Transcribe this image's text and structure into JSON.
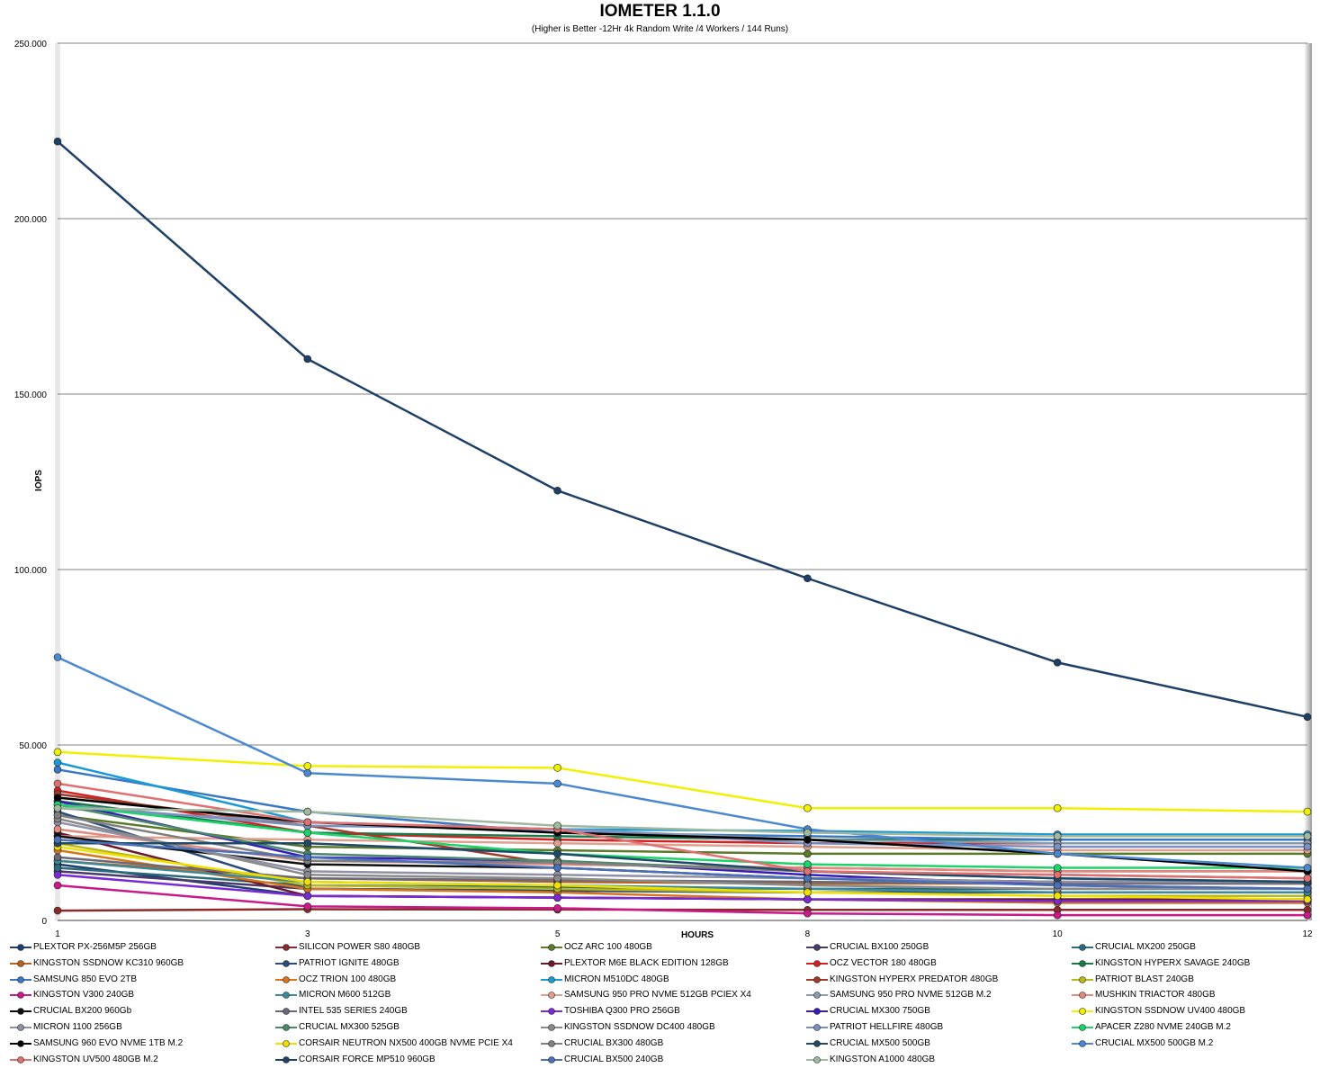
{
  "chart_data": {
    "type": "line",
    "title": "IOMETER 1.1.0",
    "subtitle": "(Higher is Better -12Hr 4k Random Write /4 Workers / 144 Runs)",
    "xlabel": "HOURS",
    "ylabel": "IOPS",
    "x": [
      "1",
      "3",
      "5",
      "8",
      "10",
      "12"
    ],
    "ylim": [
      0,
      250000
    ],
    "yticks": [
      "0",
      "50.000",
      "100.000",
      "150.000",
      "200.000",
      "250.000"
    ],
    "grid": "horizontal",
    "legend_position": "bottom",
    "series": [
      {
        "name": "PLEXTOR PX-256M5P 256GB",
        "color": "#1f3f6e",
        "values": [
          16000,
          7000,
          6500,
          6000,
          6000,
          6000
        ]
      },
      {
        "name": "SILICON POWER S80 480GB",
        "color": "#8b2a2a",
        "values": [
          2800,
          3200,
          3100,
          3000,
          3000,
          3000
        ]
      },
      {
        "name": "OCZ ARC 100 480GB",
        "color": "#5a7a2a",
        "values": [
          30000,
          21000,
          20000,
          19000,
          19000,
          19000
        ]
      },
      {
        "name": "CRUCIAL BX100 250GB",
        "color": "#4a3a6a",
        "values": [
          14000,
          9000,
          8500,
          8000,
          8000,
          8000
        ]
      },
      {
        "name": "CRUCIAL MX200 250GB",
        "color": "#2a6a7a",
        "values": [
          15000,
          10000,
          9500,
          9000,
          9000,
          9000
        ]
      },
      {
        "name": "KINGSTON SSDNOW KC310 960GB",
        "color": "#b8621e",
        "values": [
          17000,
          12000,
          11000,
          10500,
          10500,
          10500
        ]
      },
      {
        "name": "PATRIOT IGNITE 480GB",
        "color": "#2a4a7a",
        "values": [
          31000,
          9000,
          8500,
          8000,
          8000,
          8000
        ]
      },
      {
        "name": "PLEXTOR M6E BLACK EDITION 128GB",
        "color": "#6a1a2a",
        "values": [
          25000,
          7000,
          6500,
          6000,
          6000,
          6000
        ]
      },
      {
        "name": "OCZ VECTOR 180 480GB",
        "color": "#d42020",
        "values": [
          37000,
          25000,
          23000,
          22000,
          22000,
          22000
        ]
      },
      {
        "name": "KINGSTON HYPERX SAVAGE 240GB",
        "color": "#1a7a4a",
        "values": [
          34000,
          25000,
          24000,
          23000,
          23000,
          23000
        ]
      },
      {
        "name": "SAMSUNG 850 EVO 2TB",
        "color": "#3a78c4",
        "values": [
          43000,
          31000,
          25000,
          24000,
          23000,
          23000
        ]
      },
      {
        "name": "OCZ TRION 100 480GB",
        "color": "#d8741a",
        "values": [
          20000,
          9000,
          8000,
          6000,
          5000,
          5000
        ]
      },
      {
        "name": "MICRON M510DC 480GB",
        "color": "#1a9ad4",
        "values": [
          45000,
          28000,
          26000,
          25500,
          24500,
          24500
        ]
      },
      {
        "name": "KINGSTON HYPERX PREDATOR 480GB",
        "color": "#a03a2a",
        "values": [
          36000,
          27000,
          16000,
          15000,
          14000,
          14000
        ]
      },
      {
        "name": "PATRIOT BLAST 240GB",
        "color": "#b8b81a",
        "values": [
          22000,
          10000,
          9000,
          8000,
          7000,
          7000
        ]
      },
      {
        "name": "KINGSTON V300 240GB",
        "color": "#c81a8a",
        "values": [
          10000,
          4000,
          3500,
          2000,
          1500,
          1500
        ]
      },
      {
        "name": "MICRON M600 512GB",
        "color": "#3a8a9a",
        "values": [
          17000,
          11000,
          10000,
          9000,
          8000,
          8000
        ]
      },
      {
        "name": "SAMSUNG 950 PRO NVME 512GB PCIEX X4",
        "color": "#e0a090",
        "values": [
          24000,
          23000,
          22000,
          21000,
          20000,
          20000
        ]
      },
      {
        "name": "SAMSUNG 950 PRO NVME 512GB M.2",
        "color": "#8a9ab0",
        "values": [
          32000,
          28000,
          26000,
          23000,
          22000,
          22000
        ]
      },
      {
        "name": "MUSHKIN TRIACTOR 480GB",
        "color": "#e08a80",
        "values": [
          26000,
          17000,
          16000,
          15000,
          14000,
          14000
        ]
      },
      {
        "name": "CRUCIAL BX200 960Gb",
        "color": "#101010",
        "values": [
          24000,
          16000,
          15000,
          12000,
          11000,
          11000
        ]
      },
      {
        "name": "INTEL 535 SERIES 240GB",
        "color": "#6a6a7a",
        "values": [
          18000,
          12000,
          11500,
          11000,
          10500,
          10500
        ]
      },
      {
        "name": "TOSHIBA Q300 PRO 256GB",
        "color": "#7a2ad4",
        "values": [
          13000,
          7000,
          6500,
          6000,
          5500,
          5500
        ]
      },
      {
        "name": "CRUCIAL MX300 750GB",
        "color": "#3a1ab8",
        "values": [
          34000,
          18000,
          17000,
          13000,
          10000,
          9000
        ]
      },
      {
        "name": "KINGSTON SSDNOW UV400 480GB",
        "color": "#f0f000",
        "values": [
          48000,
          44000,
          43500,
          32000,
          32000,
          31000
        ]
      },
      {
        "name": "MICRON 1100 256GB",
        "color": "#9090a8",
        "values": [
          28000,
          14000,
          13000,
          12000,
          11000,
          11000
        ]
      },
      {
        "name": "CRUCIAL MX300 525GB",
        "color": "#4a8a6a",
        "values": [
          33000,
          19000,
          17000,
          14000,
          12000,
          11000
        ]
      },
      {
        "name": "KINGSTON SSDNOW DC400 480GB",
        "color": "#8a8a8a",
        "values": [
          29000,
          13000,
          12000,
          10000,
          9000,
          9000
        ]
      },
      {
        "name": "PATRIOT HELLFIRE 480GB",
        "color": "#7a90c0",
        "values": [
          33000,
          27000,
          26000,
          22000,
          21000,
          21000
        ]
      },
      {
        "name": "APACER Z280 NVME 240GB M.2",
        "color": "#1ad46a",
        "values": [
          33000,
          25000,
          19000,
          16000,
          15000,
          15000
        ]
      },
      {
        "name": "SAMSUNG 960 EVO NVME 1TB M.2",
        "color": "#000000",
        "values": [
          35000,
          28000,
          25000,
          23000,
          19000,
          14000
        ]
      },
      {
        "name": "CORSAIR NEUTRON NX500 400GB NVME PCIE X4",
        "color": "#f0e000",
        "values": [
          21000,
          11000,
          10000,
          8000,
          7000,
          6000
        ]
      },
      {
        "name": "CRUCIAL BX300 480GB",
        "color": "#808080",
        "values": [
          30000,
          17000,
          16500,
          14000,
          13000,
          12000
        ]
      },
      {
        "name": "CRUCIAL MX500 500GB",
        "color": "#1f4a6a",
        "values": [
          22000,
          22000,
          19000,
          14000,
          12000,
          11000
        ]
      },
      {
        "name": "CRUCIAL MX500 500GB M.2",
        "color": "#4a88d0",
        "values": [
          75000,
          42000,
          39000,
          26000,
          19000,
          15000
        ]
      },
      {
        "name": "KINGSTON UV500 480GB M.2",
        "color": "#e07070",
        "values": [
          39000,
          28000,
          26000,
          14000,
          13000,
          12000
        ]
      },
      {
        "name": "CORSAIR FORCE MP510 960GB",
        "color": "#1f4066",
        "values": [
          222000,
          160000,
          122500,
          97500,
          73500,
          58000
        ]
      },
      {
        "name": "CRUCIAL BX500 240GB",
        "color": "#4a70b8",
        "values": [
          23000,
          18000,
          15000,
          12000,
          10000,
          9000
        ]
      },
      {
        "name": "KINGSTON A1000 480GB",
        "color": "#a0b8a0",
        "values": [
          32000,
          31000,
          27000,
          25000,
          24000,
          24000
        ]
      }
    ]
  }
}
